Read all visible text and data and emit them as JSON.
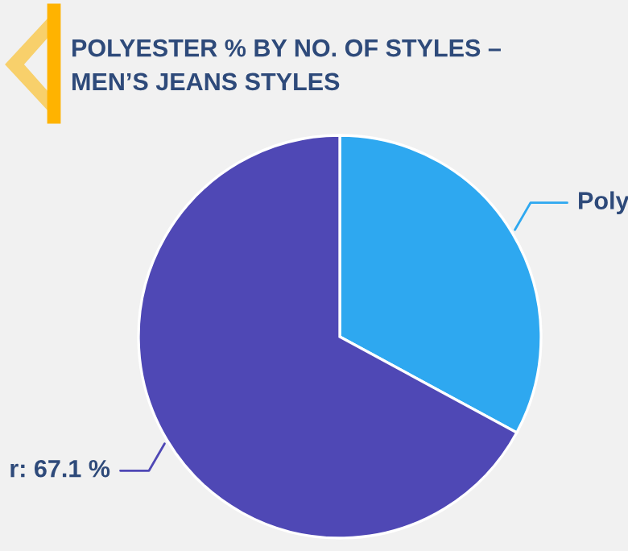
{
  "chart_data": {
    "type": "pie",
    "title": "POLYESTER % BY NO. OF STYLES –\nMEN’S JEANS STYLES",
    "categories": [
      "Poly",
      "r"
    ],
    "values": [
      32.9,
      67.1
    ],
    "value_labels": [
      null,
      "67.1 %"
    ],
    "colors": [
      "#2ea8f0",
      "#4f48b5"
    ]
  }
}
